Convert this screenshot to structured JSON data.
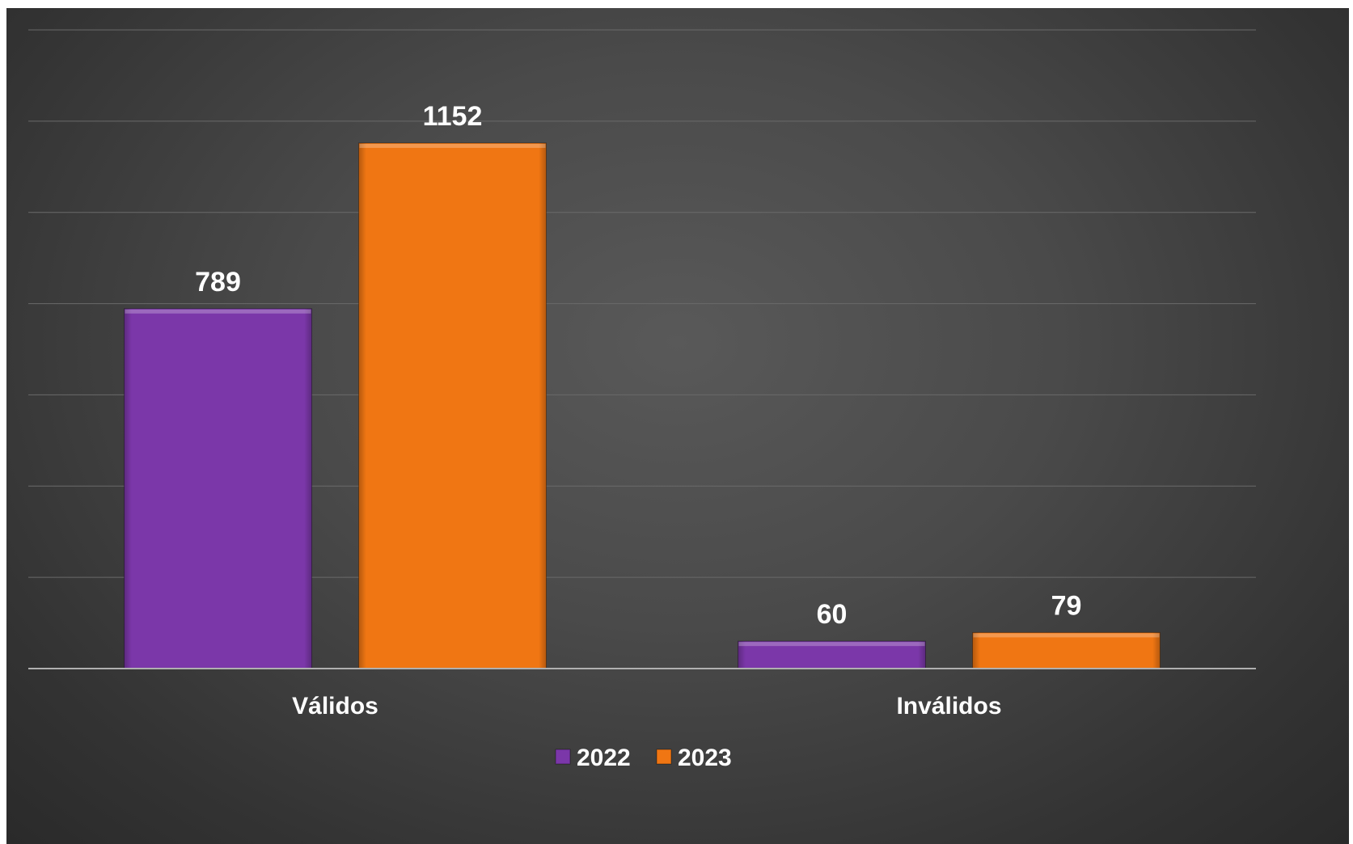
{
  "chart_data": {
    "type": "bar",
    "categories": [
      "Válidos",
      "Inválidos"
    ],
    "series": [
      {
        "name": "2022",
        "values": [
          789,
          60
        ],
        "color": "#7B37A9"
      },
      {
        "name": "2023",
        "values": [
          1152,
          79
        ],
        "color": "#F07613"
      }
    ],
    "ylim": [
      0,
      1400
    ],
    "grid": true,
    "legend_position": "bottom",
    "title": "",
    "xlabel": "",
    "ylabel": ""
  }
}
